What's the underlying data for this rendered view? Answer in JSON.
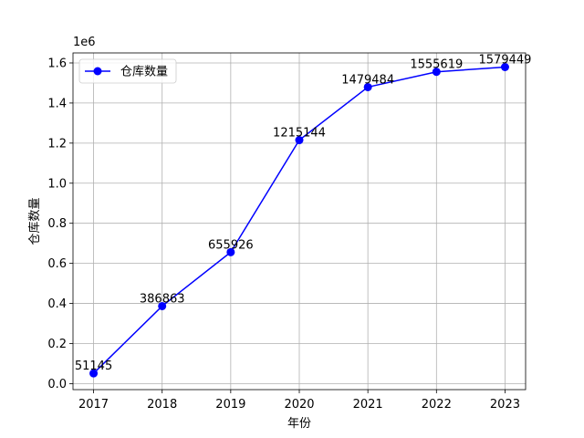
{
  "chart_data": {
    "type": "line",
    "x": [
      "2017",
      "2018",
      "2019",
      "2020",
      "2021",
      "2022",
      "2023"
    ],
    "series": [
      {
        "name": "仓库数量",
        "values": [
          51145,
          386863,
          655926,
          1215144,
          1479484,
          1555619,
          1579449
        ],
        "color": "#0000ff",
        "marker": "circle"
      }
    ],
    "data_labels": [
      "51145",
      "386863",
      "655926",
      "1215144",
      "1479484",
      "1555619",
      "1579449"
    ],
    "xlabel": "年份",
    "ylabel": "仓库数量",
    "y_offset_text": "1e6",
    "y_scale": 1000000,
    "ylim": [
      -30000,
      1650000
    ],
    "yticks": [
      0.0,
      0.2,
      0.4,
      0.6,
      0.8,
      1.0,
      1.2,
      1.4,
      1.6
    ],
    "ytick_labels": [
      "0.0",
      "0.2",
      "0.4",
      "0.6",
      "0.8",
      "1.0",
      "1.2",
      "1.4",
      "1.6"
    ],
    "grid": true,
    "legend_position": "top-left"
  }
}
